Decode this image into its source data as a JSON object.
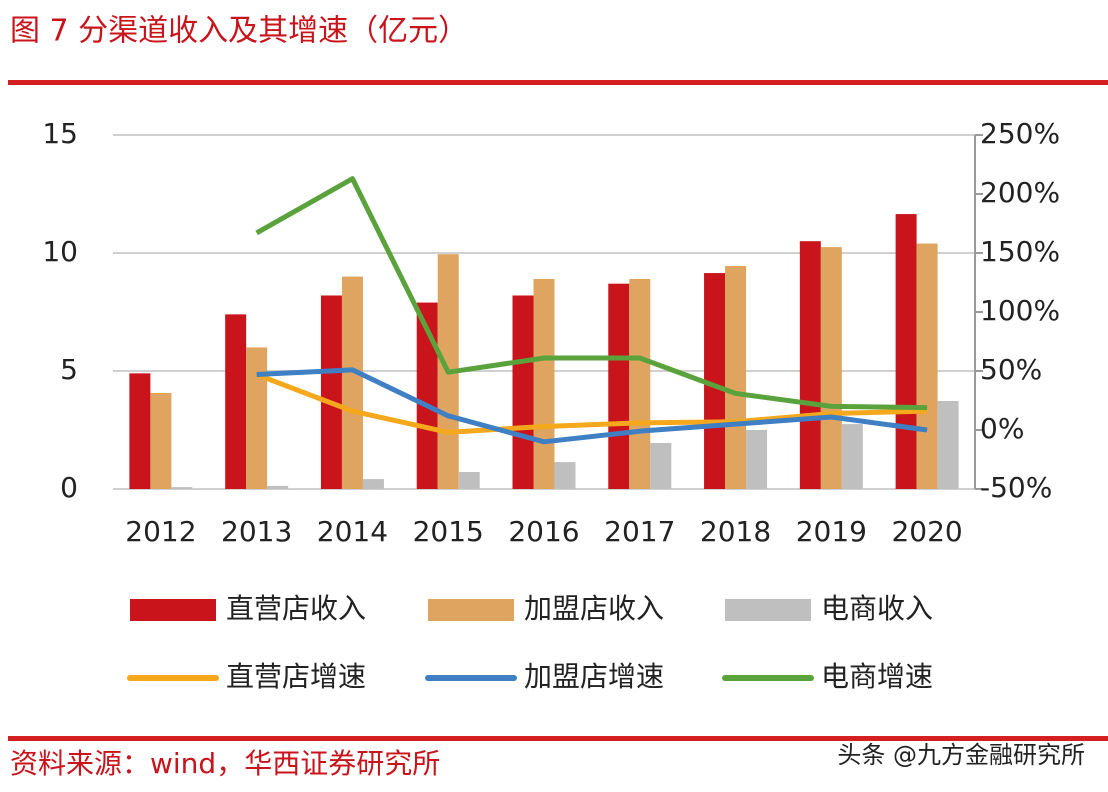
{
  "title": "图 7 分渠道收入及其增速（亿元）",
  "source": "资料来源：wind，华西证券研究所",
  "watermark": "头条 @九方金融研究所",
  "chart_data": {
    "type": "bar",
    "categories": [
      "2012",
      "2013",
      "2014",
      "2015",
      "2016",
      "2017",
      "2018",
      "2019",
      "2020"
    ],
    "ylim": [
      0,
      15
    ],
    "yticks": [
      0,
      5,
      10,
      15
    ],
    "y2lim": [
      -50,
      250
    ],
    "y2ticks": [
      {
        "value": -50,
        "label": "-50%"
      },
      {
        "value": 0,
        "label": "0%"
      },
      {
        "value": 50,
        "label": "50%"
      },
      {
        "value": 100,
        "label": "100%"
      },
      {
        "value": 150,
        "label": "150%"
      },
      {
        "value": 200,
        "label": "200%"
      },
      {
        "value": 250,
        "label": "250%"
      }
    ],
    "grid": true,
    "series": [
      {
        "name": "直营店收入",
        "type": "bar",
        "color": "#c9141c",
        "values": [
          4.9,
          7.4,
          8.2,
          7.9,
          8.2,
          8.7,
          9.15,
          10.5,
          11.65
        ]
      },
      {
        "name": "加盟店收入",
        "type": "bar",
        "color": "#dfa560",
        "values": [
          4.07,
          6.0,
          9.0,
          9.95,
          8.9,
          8.9,
          9.45,
          10.25,
          10.4
        ]
      },
      {
        "name": "电商收入",
        "type": "bar",
        "color": "#bfbfbf",
        "values": [
          0.08,
          0.13,
          0.42,
          0.72,
          1.14,
          1.95,
          2.5,
          2.75,
          3.73
        ]
      },
      {
        "name": "直营店增速",
        "type": "line",
        "axis": "y2",
        "color": "#f5a81c",
        "values": [
          null,
          47,
          16,
          -2,
          3,
          6,
          7,
          14,
          16
        ]
      },
      {
        "name": "加盟店增速",
        "type": "line",
        "axis": "y2",
        "color": "#3f7fc4",
        "values": [
          null,
          47,
          51,
          12,
          -10,
          -1,
          5,
          11,
          0
        ]
      },
      {
        "name": "电商增速",
        "type": "line",
        "axis": "y2",
        "color": "#5aa33c",
        "values": [
          null,
          167,
          213,
          49,
          61,
          61,
          31,
          20,
          19
        ]
      }
    ]
  }
}
